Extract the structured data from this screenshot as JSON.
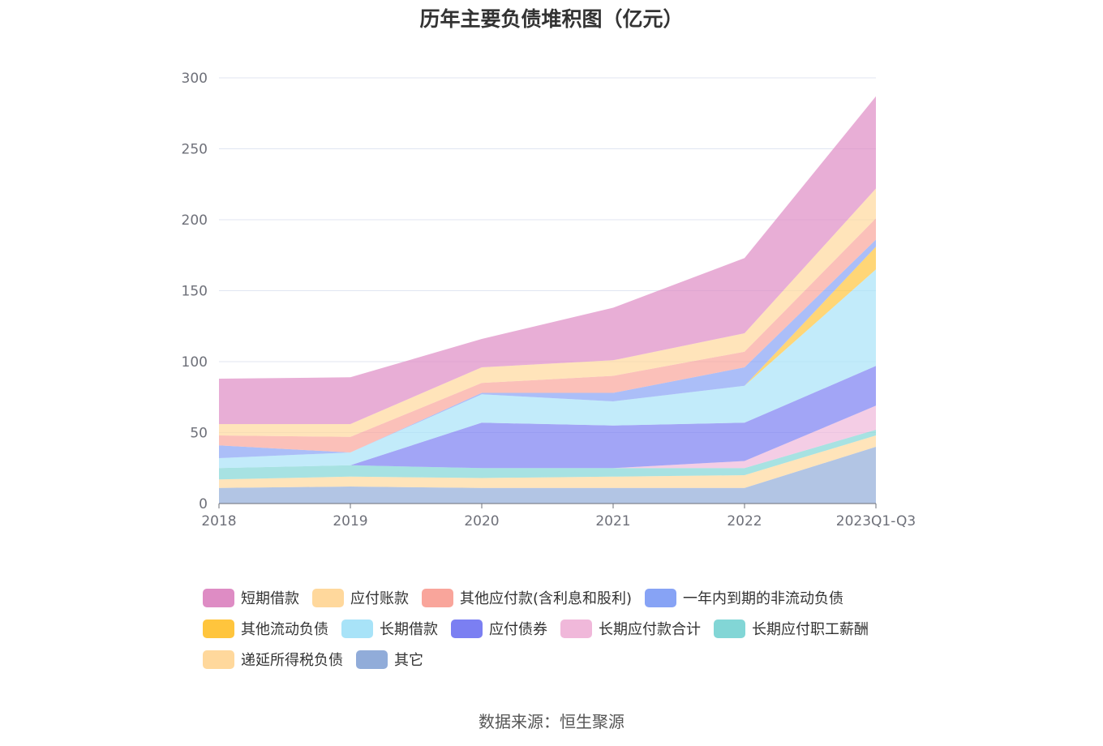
{
  "chart_data": {
    "type": "area",
    "stacked": true,
    "title": "历年主要负债堆积图（亿元）",
    "x": [
      "2018",
      "2019",
      "2020",
      "2021",
      "2022",
      "2023Q1-Q3"
    ],
    "ylim": [
      0,
      300
    ],
    "yticks": [
      0,
      50,
      100,
      150,
      200,
      250,
      300
    ],
    "grid": true,
    "legend_position": "bottom",
    "series": [
      {
        "name": "其它",
        "color": "#91acd9",
        "values": [
          11,
          12,
          11,
          11,
          11,
          40
        ]
      },
      {
        "name": "递延所得税负债",
        "color": "#ffd89c",
        "values": [
          6,
          7,
          7,
          8,
          9,
          8
        ]
      },
      {
        "name": "长期应付职工薪酬",
        "color": "#82d6d6",
        "values": [
          8,
          8,
          7,
          6,
          5,
          4
        ]
      },
      {
        "name": "长期应付款合计",
        "color": "#f0b8da",
        "values": [
          0,
          0,
          0,
          0,
          5,
          17
        ]
      },
      {
        "name": "应付债券",
        "color": "#7b7ff2",
        "values": [
          0,
          0,
          32,
          30,
          27,
          28
        ]
      },
      {
        "name": "长期借款",
        "color": "#a8e3f8",
        "values": [
          7,
          9,
          20,
          17,
          26,
          68
        ]
      },
      {
        "name": "其他流动负债",
        "color": "#ffc53d",
        "values": [
          0,
          0,
          0,
          0,
          0,
          16
        ]
      },
      {
        "name": "一年内到期的非流动负债",
        "color": "#87a3f5",
        "values": [
          9,
          0,
          1,
          6,
          13,
          5
        ]
      },
      {
        "name": "其他应付款(含利息和股利)",
        "color": "#f9a59b",
        "values": [
          7,
          11,
          7,
          12,
          11,
          15
        ]
      },
      {
        "name": "应付账款",
        "color": "#ffd89c",
        "values": [
          8,
          9,
          11,
          11,
          13,
          21
        ]
      },
      {
        "name": "短期借款",
        "color": "#de8cc4",
        "values": [
          32,
          33,
          20,
          37,
          53,
          65
        ]
      }
    ]
  },
  "legend": [
    [
      "短期借款",
      "应付账款",
      "其他应付款(含利息和股利)",
      "一年内到期的非流动负债"
    ],
    [
      "其他流动负债",
      "长期借款",
      "应付债券",
      "长期应付款合计",
      "长期应付职工薪酬"
    ],
    [
      "递延所得税负债",
      "其它"
    ]
  ],
  "source_text": "数据来源：恒生聚源"
}
